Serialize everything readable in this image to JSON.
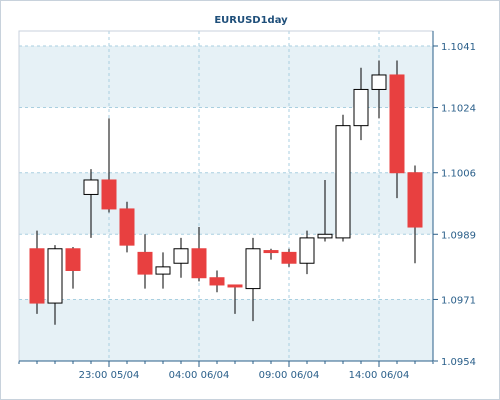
{
  "chart_data": {
    "type": "candlestick",
    "title": "EURUSD1day",
    "ylim": [
      1.0954,
      1.1041
    ],
    "y_ticks": [
      1.1041,
      1.1024,
      1.1006,
      1.0989,
      1.0971,
      1.0954
    ],
    "y_tick_labels": [
      "1.1041",
      "1.1024",
      "1.1006",
      "1.0989",
      "1.0971",
      "1.0954"
    ],
    "x_tick_labels": [
      "23:00 05/04",
      "04:00 06/04",
      "09:00 06/04",
      "14:00 06/04"
    ],
    "grid": true,
    "colors": {
      "bull": "#ffffff",
      "bear": "#e84040",
      "wick": "#000000",
      "grid": "#a9cfe0",
      "band": "#e6f1f6"
    },
    "candles": [
      {
        "o": 1.0985,
        "h": 1.099,
        "l": 1.0967,
        "c": 1.097
      },
      {
        "o": 1.097,
        "h": 1.0986,
        "l": 1.0964,
        "c": 1.0985
      },
      {
        "o": 1.0985,
        "h": 1.09855,
        "l": 1.0974,
        "c": 1.0979
      },
      {
        "o": 1.1,
        "h": 1.1007,
        "l": 1.0988,
        "c": 1.1004
      },
      {
        "o": 1.1004,
        "h": 1.1021,
        "l": 1.0995,
        "c": 1.0996
      },
      {
        "o": 1.0996,
        "h": 1.0998,
        "l": 1.0984,
        "c": 1.0986
      },
      {
        "o": 1.0984,
        "h": 1.0989,
        "l": 1.0974,
        "c": 1.0978
      },
      {
        "o": 1.0978,
        "h": 1.0984,
        "l": 1.0974,
        "c": 1.098
      },
      {
        "o": 1.0981,
        "h": 1.0988,
        "l": 1.0977,
        "c": 1.0985
      },
      {
        "o": 1.0985,
        "h": 1.0991,
        "l": 1.0976,
        "c": 1.0977
      },
      {
        "o": 1.0977,
        "h": 1.0979,
        "l": 1.0973,
        "c": 1.0975
      },
      {
        "o": 1.0975,
        "h": 1.0975,
        "l": 1.0967,
        "c": 1.09745
      },
      {
        "o": 1.0974,
        "h": 1.0988,
        "l": 1.0965,
        "c": 1.0985
      },
      {
        "o": 1.09845,
        "h": 1.0985,
        "l": 1.0982,
        "c": 1.0984
      },
      {
        "o": 1.0984,
        "h": 1.0985,
        "l": 1.098,
        "c": 1.0981
      },
      {
        "o": 1.0981,
        "h": 1.099,
        "l": 1.0978,
        "c": 1.0988
      },
      {
        "o": 1.0988,
        "h": 1.1004,
        "l": 1.0987,
        "c": 1.0989
      },
      {
        "o": 1.0988,
        "h": 1.1022,
        "l": 1.0987,
        "c": 1.1019
      },
      {
        "o": 1.1019,
        "h": 1.1035,
        "l": 1.1015,
        "c": 1.1029
      },
      {
        "o": 1.1029,
        "h": 1.1037,
        "l": 1.1021,
        "c": 1.1033
      },
      {
        "o": 1.1033,
        "h": 1.1037,
        "l": 1.0999,
        "c": 1.1006
      },
      {
        "o": 1.1006,
        "h": 1.1008,
        "l": 1.0981,
        "c": 1.0991
      }
    ]
  }
}
